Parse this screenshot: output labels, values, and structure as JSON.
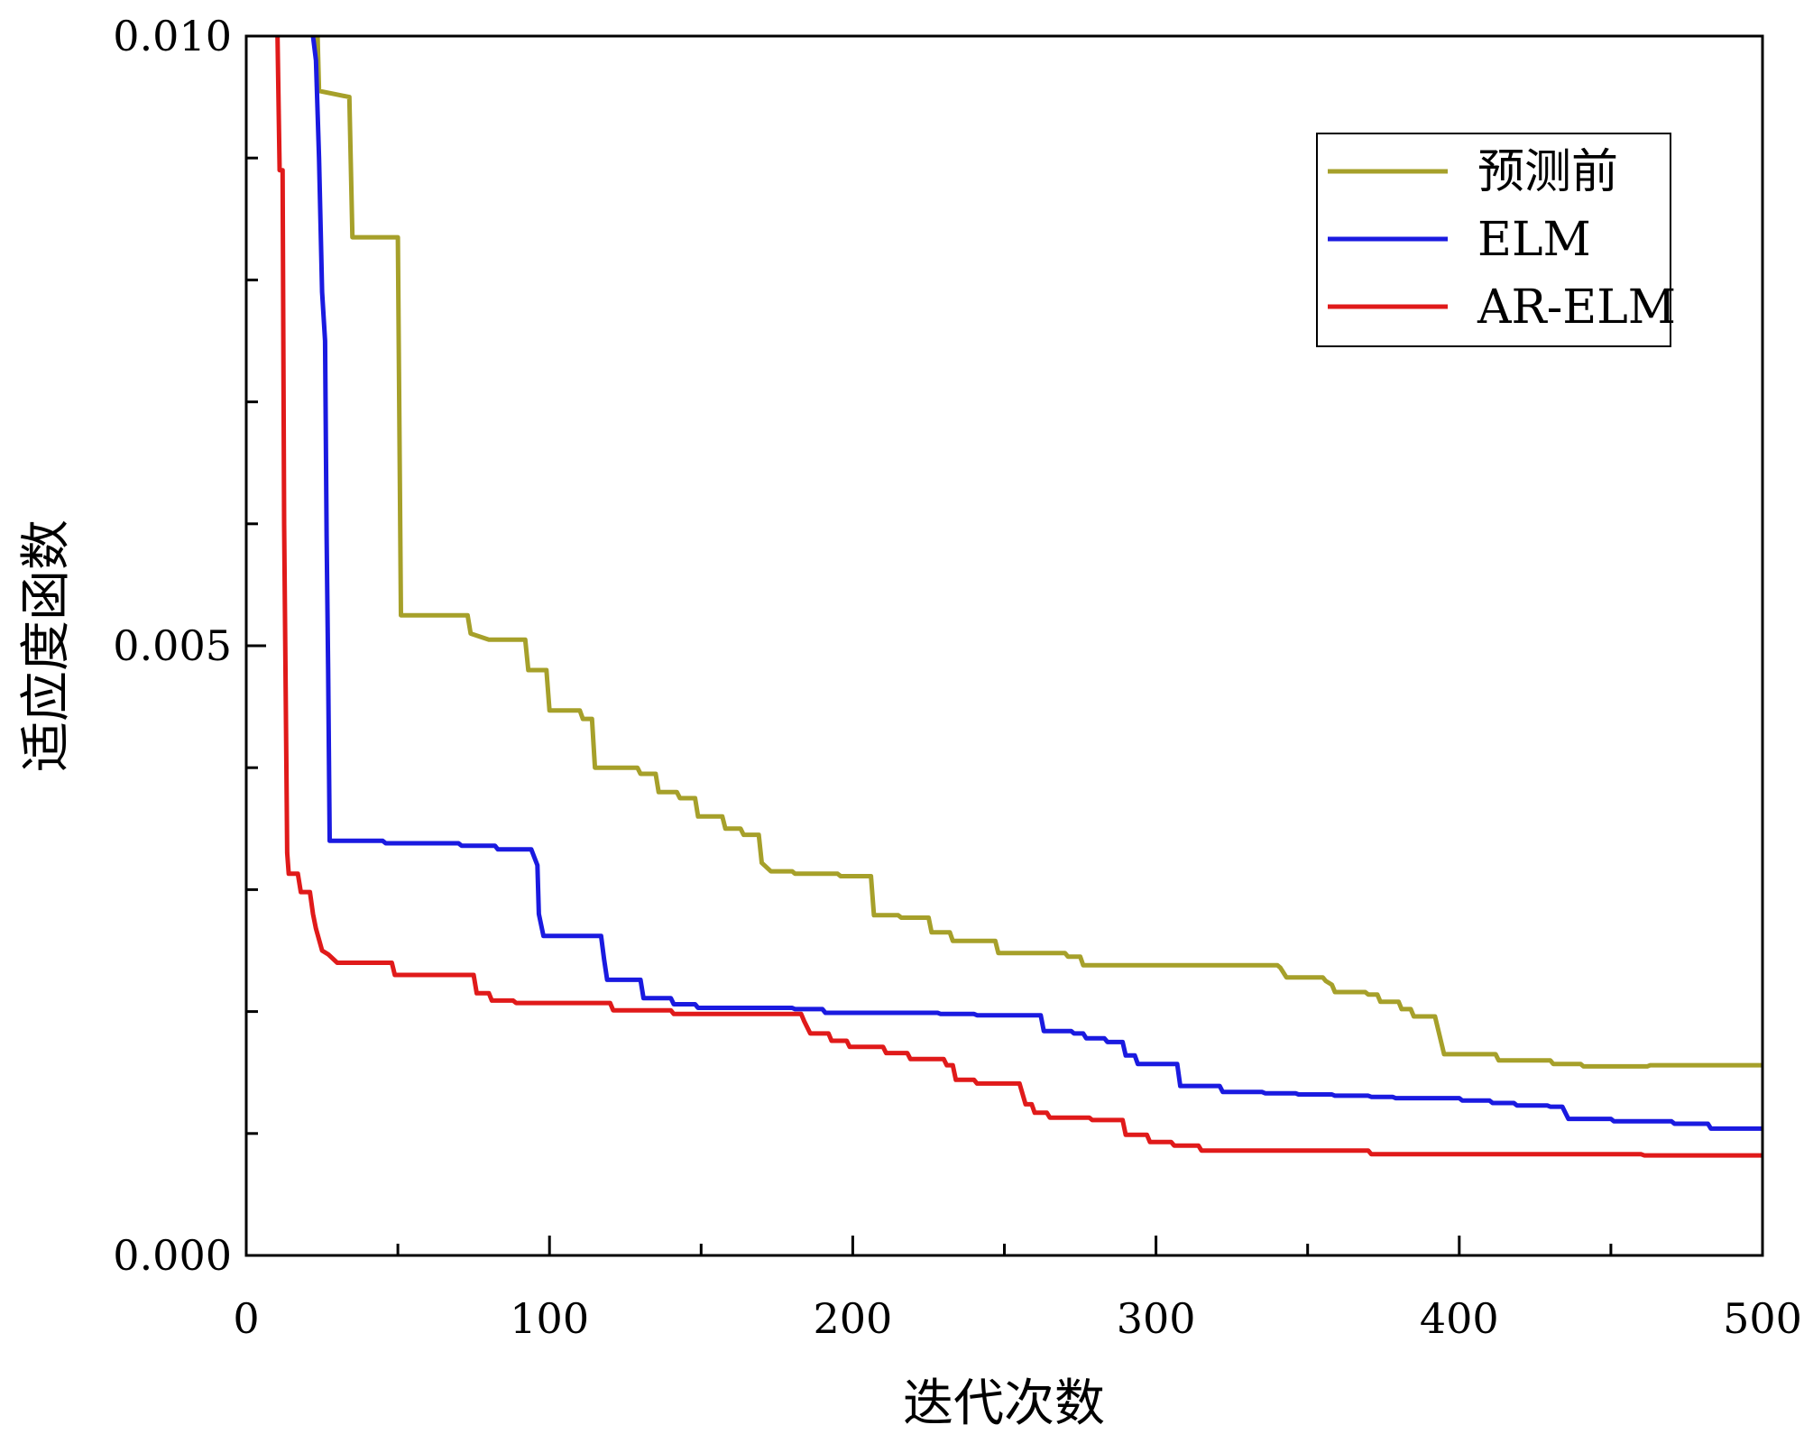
{
  "chart_data": {
    "type": "line",
    "title": "",
    "xlabel": "迭代次数",
    "ylabel": "适应度函数",
    "xlim": [
      0,
      500
    ],
    "ylim": [
      0,
      0.01
    ],
    "x_ticks": [
      0,
      100,
      200,
      300,
      400,
      500
    ],
    "x_tick_labels": [
      "0",
      "100",
      "200",
      "300",
      "400",
      "500"
    ],
    "y_ticks": [
      0,
      0.005,
      0.01
    ],
    "y_tick_labels": [
      "0.000",
      "0.005",
      "0.010"
    ],
    "legend_position": "top-right",
    "grid": false,
    "series": [
      {
        "name": "预测前",
        "color": "#a6a02a",
        "step": true,
        "points": [
          [
            23,
            0.0105
          ],
          [
            24,
            0.00955
          ],
          [
            34,
            0.0095
          ],
          [
            35,
            0.00835
          ],
          [
            50,
            0.00835
          ],
          [
            51,
            0.00525
          ],
          [
            73,
            0.00525
          ],
          [
            74,
            0.0051
          ],
          [
            80,
            0.00505
          ],
          [
            92,
            0.00505
          ],
          [
            93,
            0.0048
          ],
          [
            99,
            0.0048
          ],
          [
            100,
            0.00447
          ],
          [
            110,
            0.00447
          ],
          [
            111,
            0.0044
          ],
          [
            114,
            0.0044
          ],
          [
            115,
            0.004
          ],
          [
            129,
            0.004
          ],
          [
            130,
            0.00395
          ],
          [
            135,
            0.00395
          ],
          [
            136,
            0.0038
          ],
          [
            142,
            0.0038
          ],
          [
            143,
            0.00375
          ],
          [
            148,
            0.00375
          ],
          [
            149,
            0.0036
          ],
          [
            157,
            0.0036
          ],
          [
            158,
            0.0035
          ],
          [
            163,
            0.0035
          ],
          [
            164,
            0.00345
          ],
          [
            169,
            0.00345
          ],
          [
            170,
            0.00322
          ],
          [
            173,
            0.00315
          ],
          [
            180,
            0.00315
          ],
          [
            181,
            0.00313
          ],
          [
            195,
            0.00313
          ],
          [
            196,
            0.00311
          ],
          [
            206,
            0.00311
          ],
          [
            207,
            0.00279
          ],
          [
            215,
            0.00279
          ],
          [
            216,
            0.00277
          ],
          [
            225,
            0.00277
          ],
          [
            226,
            0.00265
          ],
          [
            232,
            0.00265
          ],
          [
            233,
            0.00258
          ],
          [
            247,
            0.00258
          ],
          [
            248,
            0.00248
          ],
          [
            270,
            0.00248
          ],
          [
            271,
            0.00245
          ],
          [
            275,
            0.00245
          ],
          [
            276,
            0.00238
          ],
          [
            340,
            0.00238
          ],
          [
            341,
            0.00236
          ],
          [
            343,
            0.00228
          ],
          [
            355,
            0.00228
          ],
          [
            356,
            0.00225
          ],
          [
            358,
            0.00222
          ],
          [
            359,
            0.00216
          ],
          [
            369,
            0.00216
          ],
          [
            370,
            0.00214
          ],
          [
            373,
            0.00214
          ],
          [
            374,
            0.00208
          ],
          [
            380,
            0.00208
          ],
          [
            381,
            0.00202
          ],
          [
            384,
            0.00202
          ],
          [
            385,
            0.00196
          ],
          [
            392,
            0.00196
          ],
          [
            395,
            0.00165
          ],
          [
            400,
            0.00165
          ],
          [
            412,
            0.00165
          ],
          [
            413,
            0.0016
          ],
          [
            430,
            0.0016
          ],
          [
            431,
            0.00157
          ],
          [
            440,
            0.00157
          ],
          [
            441,
            0.00155
          ],
          [
            462,
            0.00155
          ],
          [
            463,
            0.00156
          ],
          [
            500,
            0.00156
          ]
        ]
      },
      {
        "name": "ELM",
        "color": "#1a1ae0",
        "step": true,
        "points": [
          [
            21,
            0.0105
          ],
          [
            22,
            0.01
          ],
          [
            23,
            0.0098
          ],
          [
            24,
            0.009
          ],
          [
            25,
            0.0079
          ],
          [
            26,
            0.0075
          ],
          [
            26.5,
            0.0059
          ],
          [
            27,
            0.0048
          ],
          [
            27.5,
            0.0034
          ],
          [
            45,
            0.0034
          ],
          [
            46,
            0.00338
          ],
          [
            70,
            0.00338
          ],
          [
            71,
            0.00336
          ],
          [
            82,
            0.00336
          ],
          [
            83,
            0.00333
          ],
          [
            94,
            0.00333
          ],
          [
            96,
            0.0032
          ],
          [
            96.5,
            0.0028
          ],
          [
            98,
            0.00262
          ],
          [
            117,
            0.00262
          ],
          [
            118,
            0.00243
          ],
          [
            119,
            0.00226
          ],
          [
            130,
            0.00226
          ],
          [
            131,
            0.00211
          ],
          [
            140,
            0.00211
          ],
          [
            141,
            0.00206
          ],
          [
            148,
            0.00206
          ],
          [
            149,
            0.00203
          ],
          [
            180,
            0.00203
          ],
          [
            181,
            0.00202
          ],
          [
            190,
            0.00202
          ],
          [
            191,
            0.00199
          ],
          [
            228,
            0.00199
          ],
          [
            229,
            0.00198
          ],
          [
            240,
            0.00198
          ],
          [
            241,
            0.00197
          ],
          [
            262,
            0.00197
          ],
          [
            263,
            0.00184
          ],
          [
            272,
            0.00184
          ],
          [
            273,
            0.00182
          ],
          [
            276,
            0.00182
          ],
          [
            277,
            0.00178
          ],
          [
            283,
            0.00178
          ],
          [
            284,
            0.00175
          ],
          [
            289,
            0.00175
          ],
          [
            290,
            0.00164
          ],
          [
            293,
            0.00164
          ],
          [
            294,
            0.00157
          ],
          [
            307,
            0.00157
          ],
          [
            308,
            0.00139
          ],
          [
            321,
            0.00139
          ],
          [
            322,
            0.00134
          ],
          [
            335,
            0.00134
          ],
          [
            336,
            0.00133
          ],
          [
            346,
            0.00133
          ],
          [
            347,
            0.00132
          ],
          [
            358,
            0.00132
          ],
          [
            359,
            0.00131
          ],
          [
            370,
            0.00131
          ],
          [
            371,
            0.0013
          ],
          [
            378,
            0.0013
          ],
          [
            379,
            0.00129
          ],
          [
            400,
            0.00129
          ],
          [
            401,
            0.00127
          ],
          [
            410,
            0.00127
          ],
          [
            411,
            0.00125
          ],
          [
            418,
            0.00125
          ],
          [
            419,
            0.00123
          ],
          [
            429,
            0.00123
          ],
          [
            430,
            0.00122
          ],
          [
            434,
            0.00122
          ],
          [
            436,
            0.00112
          ],
          [
            450,
            0.00112
          ],
          [
            451,
            0.0011
          ],
          [
            470,
            0.0011
          ],
          [
            471,
            0.00108
          ],
          [
            482,
            0.00108
          ],
          [
            483,
            0.00104
          ],
          [
            500,
            0.00104
          ]
        ]
      },
      {
        "name": "AR-ELM",
        "color": "#e01a1a",
        "step": true,
        "points": [
          [
            10,
            0.0105
          ],
          [
            11,
            0.0089
          ],
          [
            12,
            0.0089
          ],
          [
            12.5,
            0.006
          ],
          [
            13.5,
            0.0033
          ],
          [
            14,
            0.00313
          ],
          [
            17,
            0.00313
          ],
          [
            18,
            0.00298
          ],
          [
            21,
            0.00298
          ],
          [
            22,
            0.0028
          ],
          [
            23,
            0.00268
          ],
          [
            25,
            0.0025
          ],
          [
            27,
            0.00247
          ],
          [
            30,
            0.0024
          ],
          [
            48,
            0.0024
          ],
          [
            49,
            0.0023
          ],
          [
            60,
            0.0023
          ],
          [
            75,
            0.0023
          ],
          [
            76,
            0.00215
          ],
          [
            80,
            0.00215
          ],
          [
            81,
            0.00209
          ],
          [
            88,
            0.00209
          ],
          [
            89,
            0.00207
          ],
          [
            100,
            0.00207
          ],
          [
            120,
            0.00207
          ],
          [
            121,
            0.00201
          ],
          [
            140,
            0.00201
          ],
          [
            141,
            0.00198
          ],
          [
            175,
            0.00198
          ],
          [
            183,
            0.00198
          ],
          [
            184,
            0.00192
          ],
          [
            186,
            0.00182
          ],
          [
            192,
            0.00182
          ],
          [
            193,
            0.00176
          ],
          [
            198,
            0.00176
          ],
          [
            199,
            0.00171
          ],
          [
            210,
            0.00171
          ],
          [
            211,
            0.00166
          ],
          [
            218,
            0.00166
          ],
          [
            219,
            0.00161
          ],
          [
            230,
            0.00161
          ],
          [
            231,
            0.00156
          ],
          [
            233,
            0.00156
          ],
          [
            234,
            0.00144
          ],
          [
            240,
            0.00144
          ],
          [
            241,
            0.00141
          ],
          [
            255,
            0.00141
          ],
          [
            257,
            0.00124
          ],
          [
            259,
            0.00124
          ],
          [
            260,
            0.00117
          ],
          [
            264,
            0.00117
          ],
          [
            265,
            0.00113
          ],
          [
            278,
            0.00113
          ],
          [
            279,
            0.00111
          ],
          [
            289,
            0.00111
          ],
          [
            290,
            0.00099
          ],
          [
            297,
            0.00099
          ],
          [
            298,
            0.00093
          ],
          [
            305,
            0.00093
          ],
          [
            306,
            0.0009
          ],
          [
            314,
            0.0009
          ],
          [
            315,
            0.00086
          ],
          [
            370,
            0.00086
          ],
          [
            371,
            0.00083
          ],
          [
            460,
            0.00083
          ],
          [
            461,
            0.00082
          ],
          [
            500,
            0.00082
          ]
        ]
      }
    ]
  }
}
